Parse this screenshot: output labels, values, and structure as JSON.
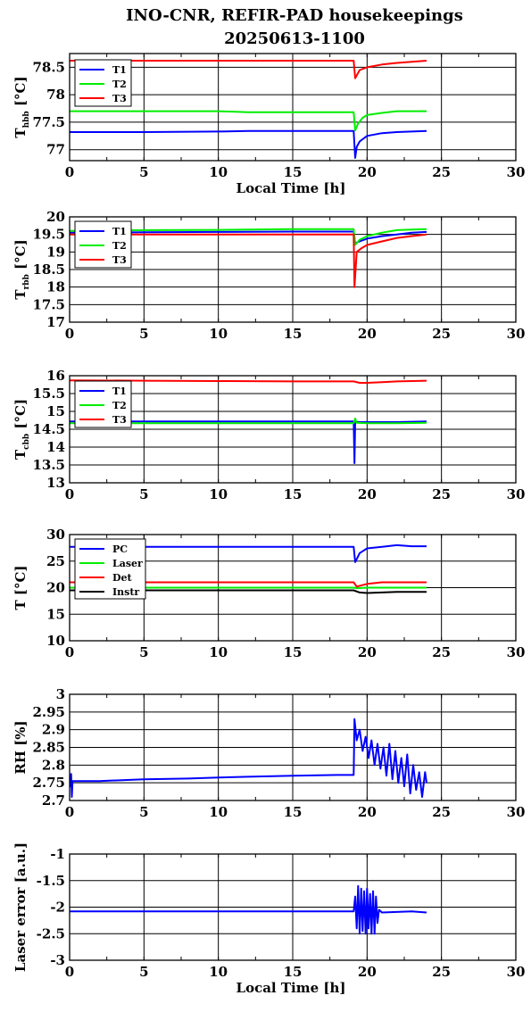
{
  "page": {
    "title_line1": "INO-CNR, REFIR-PAD housekeepings",
    "title_line2": "20250613-1100"
  },
  "chart_data": [
    {
      "type": "line",
      "ylabel_main": "T",
      "ylabel_sub": "hbb",
      "ylabel_unit": "[°C]",
      "xlabel": "Local Time [h]",
      "xlim": [
        0,
        30
      ],
      "ylim": [
        76.8,
        78.75
      ],
      "xticks": [
        "0",
        "5",
        "10",
        "15",
        "20",
        "25",
        "30"
      ],
      "yticks": [
        "77",
        "77.5",
        "78",
        "78.5"
      ],
      "grid": true,
      "legend_position": "top-left",
      "series": [
        {
          "name": "T1",
          "color": "#0000ff",
          "x": [
            0,
            5,
            10,
            12,
            15,
            18,
            19.1,
            19.2,
            19.3,
            19.5,
            20,
            21,
            22,
            23,
            24
          ],
          "y": [
            77.32,
            77.32,
            77.33,
            77.34,
            77.34,
            77.34,
            77.34,
            76.85,
            77.05,
            77.15,
            77.25,
            77.3,
            77.32,
            77.33,
            77.34
          ]
        },
        {
          "name": "T2",
          "color": "#00ee00",
          "x": [
            0,
            5,
            10,
            12,
            15,
            18,
            19.1,
            19.2,
            19.4,
            19.7,
            20,
            21,
            22,
            23,
            24
          ],
          "y": [
            77.7,
            77.7,
            77.7,
            77.68,
            77.68,
            77.68,
            77.68,
            77.35,
            77.48,
            77.58,
            77.63,
            77.67,
            77.7,
            77.7,
            77.7
          ]
        },
        {
          "name": "T3",
          "color": "#ff0000",
          "x": [
            0,
            5,
            10,
            15,
            19.1,
            19.2,
            19.5,
            20,
            21,
            22,
            23,
            24
          ],
          "y": [
            78.62,
            78.62,
            78.62,
            78.62,
            78.62,
            78.3,
            78.45,
            78.5,
            78.55,
            78.58,
            78.6,
            78.62
          ]
        }
      ]
    },
    {
      "type": "line",
      "ylabel_main": "T",
      "ylabel_sub": "rbb",
      "ylabel_unit": "[°C]",
      "xlabel": "",
      "xlim": [
        0,
        30
      ],
      "ylim": [
        17,
        20
      ],
      "xticks": [
        "0",
        "5",
        "10",
        "15",
        "20",
        "25",
        "30"
      ],
      "yticks": [
        "17",
        "17.5",
        "18",
        "18.5",
        "19",
        "19.5",
        "20"
      ],
      "grid": true,
      "legend_position": "top-left",
      "series": [
        {
          "name": "T1",
          "color": "#0000ff",
          "x": [
            0,
            5,
            10,
            15,
            19.1,
            19.2,
            19.5,
            20,
            21,
            22,
            23,
            24
          ],
          "y": [
            19.55,
            19.56,
            19.57,
            19.58,
            19.58,
            19.25,
            19.3,
            19.38,
            19.45,
            19.5,
            19.55,
            19.57
          ]
        },
        {
          "name": "T2",
          "color": "#00ee00",
          "x": [
            0,
            5,
            10,
            15,
            19.1,
            19.2,
            19.5,
            20,
            21,
            22,
            23,
            24
          ],
          "y": [
            19.6,
            19.62,
            19.63,
            19.65,
            19.65,
            19.2,
            19.35,
            19.45,
            19.55,
            19.62,
            19.64,
            19.65
          ]
        },
        {
          "name": "T3",
          "color": "#ff0000",
          "x": [
            0,
            5,
            10,
            15,
            19.1,
            19.15,
            19.3,
            19.6,
            20,
            21,
            22,
            23,
            24
          ],
          "y": [
            19.5,
            19.5,
            19.5,
            19.5,
            19.5,
            18.0,
            19.0,
            19.1,
            19.2,
            19.3,
            19.4,
            19.45,
            19.5
          ]
        }
      ]
    },
    {
      "type": "line",
      "ylabel_main": "T",
      "ylabel_sub": "cbb",
      "ylabel_unit": "[°C]",
      "xlabel": "",
      "xlim": [
        0,
        30
      ],
      "ylim": [
        13,
        16
      ],
      "xticks": [
        "0",
        "5",
        "10",
        "15",
        "20",
        "25",
        "30"
      ],
      "yticks": [
        "13",
        "13.5",
        "14",
        "14.5",
        "15",
        "15.5",
        "16"
      ],
      "grid": true,
      "legend_position": "top-left",
      "series": [
        {
          "name": "T1",
          "color": "#0000ff",
          "x": [
            0,
            5,
            10,
            15,
            19.1,
            19.15,
            19.2,
            20,
            22,
            24
          ],
          "y": [
            14.72,
            14.72,
            14.72,
            14.72,
            14.72,
            13.55,
            14.7,
            14.7,
            14.7,
            14.72
          ]
        },
        {
          "name": "T2",
          "color": "#00ee00",
          "x": [
            0,
            5,
            10,
            15,
            19.1,
            19.2,
            19.3,
            20,
            22,
            24
          ],
          "y": [
            14.67,
            14.67,
            14.67,
            14.67,
            14.67,
            14.8,
            14.68,
            14.67,
            14.67,
            14.68
          ]
        },
        {
          "name": "T3",
          "color": "#ff0000",
          "x": [
            0,
            5,
            10,
            15,
            19.1,
            19.5,
            20,
            21,
            22,
            23,
            24
          ],
          "y": [
            15.87,
            15.86,
            15.85,
            15.84,
            15.84,
            15.8,
            15.8,
            15.82,
            15.84,
            15.85,
            15.86
          ]
        }
      ]
    },
    {
      "type": "line",
      "ylabel_main": "T [°C]",
      "ylabel_sub": "",
      "ylabel_unit": "",
      "xlabel": "",
      "xlim": [
        0,
        30
      ],
      "ylim": [
        10,
        30
      ],
      "xticks": [
        "0",
        "5",
        "10",
        "15",
        "20",
        "25",
        "30"
      ],
      "yticks": [
        "10",
        "15",
        "20",
        "25",
        "30"
      ],
      "grid": true,
      "legend_position": "top-left",
      "series": [
        {
          "name": "PC",
          "color": "#0000ff",
          "x": [
            0,
            5,
            10,
            15,
            19.1,
            19.2,
            19.5,
            20,
            21,
            22,
            23,
            24
          ],
          "y": [
            27.7,
            27.7,
            27.7,
            27.7,
            27.7,
            24.8,
            26.5,
            27.4,
            27.7,
            28.0,
            27.8,
            27.8
          ]
        },
        {
          "name": "Laser",
          "color": "#00ee00",
          "x": [
            0,
            5,
            10,
            15,
            19.1,
            19.3,
            20,
            22,
            24
          ],
          "y": [
            20.0,
            20.0,
            20.0,
            20.0,
            20.0,
            19.9,
            20.0,
            20.0,
            20.0
          ]
        },
        {
          "name": "Det",
          "color": "#ff0000",
          "x": [
            0,
            5,
            10,
            15,
            19.1,
            19.3,
            20,
            21,
            22,
            24
          ],
          "y": [
            21.0,
            21.0,
            21.0,
            21.0,
            21.0,
            20.2,
            20.7,
            21.0,
            21.0,
            21.0
          ]
        },
        {
          "name": "Instr",
          "color": "#000000",
          "x": [
            0,
            5,
            10,
            15,
            19.1,
            19.5,
            20,
            21,
            22,
            24
          ],
          "y": [
            19.5,
            19.5,
            19.5,
            19.5,
            19.5,
            19.1,
            19.0,
            19.1,
            19.2,
            19.2
          ]
        }
      ]
    },
    {
      "type": "line",
      "ylabel_main": "RH [%]",
      "ylabel_sub": "",
      "ylabel_unit": "",
      "xlabel": "",
      "xlim": [
        0,
        30
      ],
      "ylim": [
        2.7,
        3.0
      ],
      "xticks": [
        "0",
        "5",
        "10",
        "15",
        "20",
        "25",
        "30"
      ],
      "yticks": [
        "2.7",
        "2.75",
        "2.8",
        "2.85",
        "2.9",
        "2.95",
        "3"
      ],
      "grid": true,
      "series": [
        {
          "name": "",
          "color": "#0000ff",
          "x": [
            0,
            0.05,
            0.1,
            0.15,
            0.2,
            2,
            5,
            8,
            10,
            12,
            15,
            18,
            19.1,
            19.15,
            19.3,
            19.5,
            19.7,
            19.9,
            20.1,
            20.3,
            20.5,
            20.7,
            20.9,
            21.1,
            21.3,
            21.5,
            21.7,
            21.9,
            22.1,
            22.3,
            22.5,
            22.7,
            22.9,
            23.1,
            23.3,
            23.5,
            23.7,
            23.9,
            24
          ],
          "y": [
            2.755,
            2.74,
            2.775,
            2.71,
            2.755,
            2.755,
            2.76,
            2.762,
            2.765,
            2.767,
            2.77,
            2.772,
            2.772,
            2.93,
            2.87,
            2.9,
            2.84,
            2.88,
            2.82,
            2.87,
            2.8,
            2.86,
            2.79,
            2.85,
            2.77,
            2.86,
            2.76,
            2.84,
            2.75,
            2.82,
            2.74,
            2.83,
            2.72,
            2.8,
            2.73,
            2.78,
            2.71,
            2.78,
            2.75
          ]
        }
      ]
    },
    {
      "type": "line",
      "ylabel_main": "Laser error [a.u.]",
      "ylabel_sub": "",
      "ylabel_unit": "",
      "xlabel": "Local Time [h]",
      "xlim": [
        0,
        30
      ],
      "ylim": [
        -3,
        -1
      ],
      "xticks": [
        "0",
        "5",
        "10",
        "15",
        "20",
        "25",
        "30"
      ],
      "yticks": [
        "-3",
        "-2.5",
        "-2",
        "-1.5",
        "-1"
      ],
      "grid": true,
      "series": [
        {
          "name": "",
          "color": "#0000ff",
          "x": [
            0,
            5,
            10,
            15,
            19.1,
            19.2,
            19.3,
            19.4,
            19.5,
            19.6,
            19.7,
            19.8,
            19.9,
            20.0,
            20.1,
            20.2,
            20.3,
            20.4,
            20.5,
            20.6,
            20.7,
            20.8,
            21.0,
            22,
            23,
            24
          ],
          "y": [
            -2.08,
            -2.08,
            -2.08,
            -2.08,
            -2.08,
            -1.8,
            -2.4,
            -1.6,
            -2.5,
            -1.65,
            -2.45,
            -1.7,
            -2.5,
            -1.65,
            -2.4,
            -1.75,
            -2.5,
            -1.7,
            -2.5,
            -1.8,
            -2.3,
            -2.05,
            -2.1,
            -2.09,
            -2.08,
            -2.1
          ]
        }
      ]
    }
  ]
}
